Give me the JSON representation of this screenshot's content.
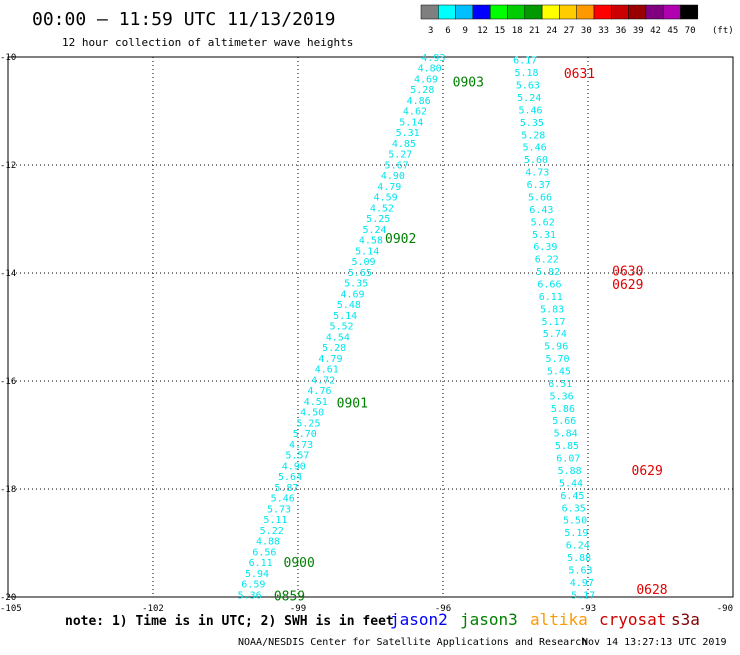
{
  "header": {
    "title": "00:00 – 11:59 UTC 11/13/2019",
    "subtitle": "12 hour collection of altimeter wave heights"
  },
  "color_scale": {
    "unit": "(ft)",
    "labels": [
      "3",
      "6",
      "9",
      "12",
      "15",
      "18",
      "21",
      "24",
      "27",
      "30",
      "33",
      "36",
      "39",
      "42",
      "45",
      "70"
    ],
    "colors": [
      "#7f7f7f",
      "#00ffff",
      "#00bfff",
      "#0000ff",
      "#00ff00",
      "#00cc00",
      "#009900",
      "#ffff00",
      "#ffcc00",
      "#ff9900",
      "#ff0000",
      "#cc0000",
      "#990000",
      "#800080",
      "#b000b0",
      "#000000"
    ]
  },
  "footer": {
    "note": "note: 1) Time is in UTC; 2) SWH is in feet",
    "credit": "NOAA/NESDIS Center for Satellite Applications and Research",
    "timestamp": "Nov 14 13:27:13 UTC 2019",
    "legend": [
      {
        "name": "jason2",
        "color": "#0000ff"
      },
      {
        "name": "jason3",
        "color": "#008000"
      },
      {
        "name": "altika",
        "color": "#ff9900"
      },
      {
        "name": "cryosat",
        "color": "#cc0000"
      },
      {
        "name": "s3a",
        "color": "#800000"
      }
    ]
  },
  "chart_data": {
    "type": "scatter",
    "xlim": [
      -105,
      -90
    ],
    "ylim": [
      -20,
      -10
    ],
    "x_ticks": [
      -105,
      -102,
      -99,
      -96,
      -93,
      -90
    ],
    "x_tick_labels": [
      "-105",
      "-102",
      "-99",
      "-96",
      "-93",
      "-90"
    ],
    "y_ticks": [
      -10,
      -12,
      -14,
      -16,
      -18,
      -20
    ],
    "y_tick_labels": [
      "-10",
      "-12",
      "-14",
      "-16",
      "-18",
      "-20"
    ],
    "grid": "dotted",
    "point_color": "#00e5ee",
    "tracks": [
      {
        "satellite": "jason3",
        "label_color": "#008000",
        "start": {
          "lon": -96.2,
          "lat": -10.0
        },
        "end": {
          "lon": -100.0,
          "lat": -19.95
        },
        "values": [
          "4.93",
          "4.80",
          "4.69",
          "5.28",
          "4.86",
          "4.62",
          "5.14",
          "5.31",
          "4.85",
          "5.27",
          "5.67",
          "4.90",
          "4.79",
          "4.59",
          "4.52",
          "5.25",
          "5.24",
          "4.58",
          "5.14",
          "5.09",
          "5.65",
          "5.35",
          "4.69",
          "5.48",
          "5.14",
          "5.52",
          "4.54",
          "5.28",
          "4.79",
          "4.61",
          "4.72",
          "4.76",
          "4.51",
          "4.50",
          "5.25",
          "5.70",
          "4.73",
          "5.57",
          "4.90",
          "5.64",
          "5.87",
          "5.46",
          "5.73",
          "5.11",
          "5.22",
          "4.88",
          "6.56",
          "6.11",
          "5.94",
          "6.59",
          "5.36"
        ],
        "time_labels": [
          {
            "text": "0903",
            "lon": -95.8,
            "lat": -10.45
          },
          {
            "text": "0902",
            "lon": -97.2,
            "lat": -13.35
          },
          {
            "text": "0901",
            "lon": -98.2,
            "lat": -16.4
          },
          {
            "text": "0900",
            "lon": -99.3,
            "lat": -19.35
          },
          {
            "text": "0859",
            "lon": -99.5,
            "lat": -19.97
          }
        ]
      },
      {
        "satellite": "s3a",
        "label_color": "#e00000",
        "start": {
          "lon": -94.3,
          "lat": -10.05
        },
        "end": {
          "lon": -93.1,
          "lat": -19.95
        },
        "values": [
          "6.17",
          "5.18",
          "5.63",
          "5.24",
          "5.46",
          "5.35",
          "5.28",
          "5.46",
          "5.60",
          "4.73",
          "6.37",
          "5.66",
          "6.43",
          "5.62",
          "5.31",
          "6.39",
          "6.22",
          "5.82",
          "6.66",
          "6.11",
          "5.83",
          "5.17",
          "5.74",
          "5.96",
          "5.70",
          "5.45",
          "6.51",
          "5.36",
          "5.86",
          "5.66",
          "5.84",
          "5.85",
          "6.07",
          "5.88",
          "5.44",
          "6.45",
          "6.35",
          "5.50",
          "5.19",
          "6.24",
          "5.88",
          "5.63",
          "4.97",
          "5.17"
        ],
        "time_labels": [
          {
            "text": "0631",
            "lon": -93.5,
            "lat": -10.3
          },
          {
            "text": "0630",
            "lon": -92.5,
            "lat": -13.95
          },
          {
            "text": "0629",
            "lon": -92.5,
            "lat": -14.2
          },
          {
            "text": "0629",
            "lon": -92.1,
            "lat": -17.65
          },
          {
            "text": "0628",
            "lon": -92.0,
            "lat": -19.85
          }
        ]
      }
    ]
  }
}
